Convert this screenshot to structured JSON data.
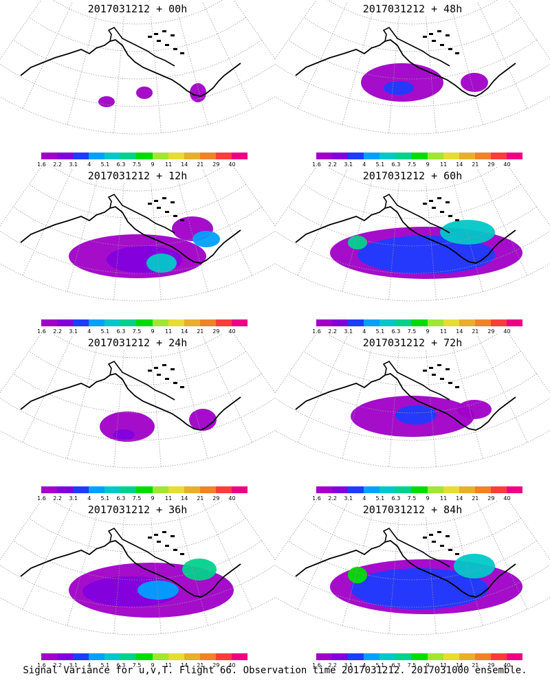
{
  "panels": [
    {
      "title": "2017031212 + 00h",
      "level": 0
    },
    {
      "title": "2017031212 + 48h",
      "level": 4
    },
    {
      "title": "2017031212 + 12h",
      "level": 1
    },
    {
      "title": "2017031212 + 60h",
      "level": 5
    },
    {
      "title": "2017031212 + 24h",
      "level": 2
    },
    {
      "title": "2017031212 + 72h",
      "level": 6
    },
    {
      "title": "2017031212 + 36h",
      "level": 3
    },
    {
      "title": "2017031212 + 84h",
      "level": 7
    }
  ],
  "colorbar": {
    "colors": [
      "#a000c8",
      "#8200dc",
      "#1e3cff",
      "#00a0ff",
      "#00c8c8",
      "#00d28c",
      "#00dc00",
      "#a0e632",
      "#e6dc32",
      "#e6af2d",
      "#f08228",
      "#fa3c3c",
      "#f00082"
    ],
    "labels": [
      "1.6",
      "2.2",
      "3.1",
      "4",
      "5.1",
      "6.3",
      "7.5",
      "9",
      "11",
      "14",
      "21",
      "29",
      "40"
    ]
  },
  "footer": "Signal Variance for u,v,T. Flight 66. Observation time 2017031212. 2017031000 ensemble."
}
